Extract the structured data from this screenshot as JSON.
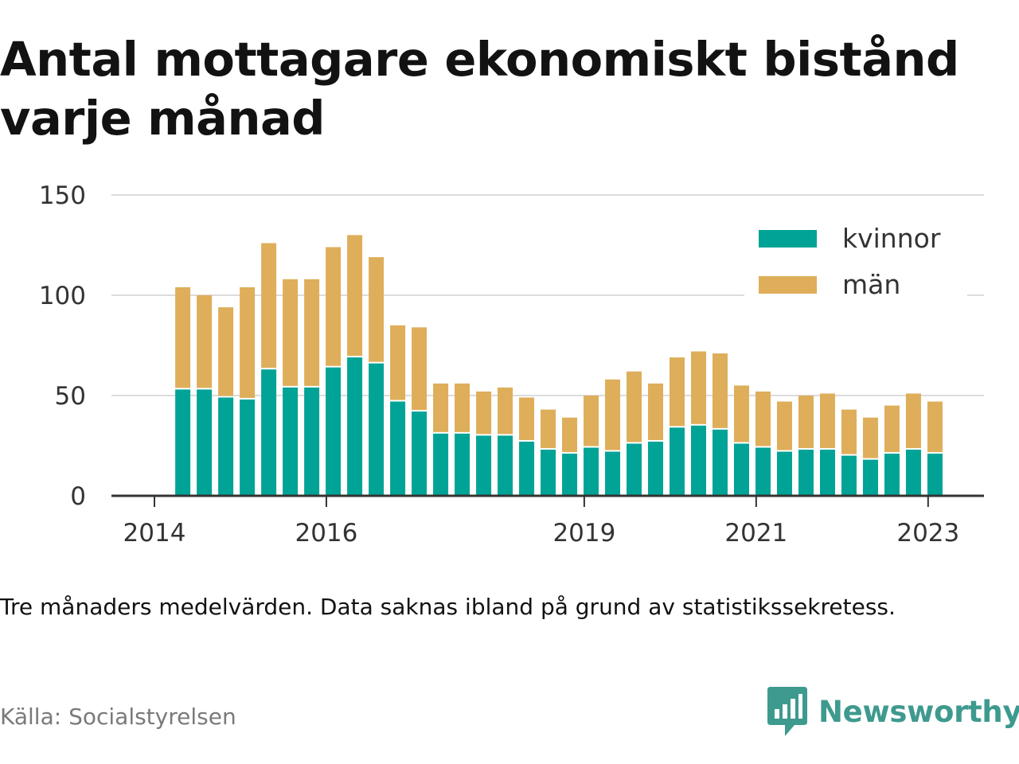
{
  "title": "Antal mottagare ekonomiskt bistånd varje månad",
  "note": "Tre månaders medelvärden. Data saknas ibland på grund av statistikssekretess.",
  "source": "Källa: Socialstyrelsen",
  "brand": {
    "name": "Newsworthy",
    "icon": "newsworthy-logo-icon",
    "color": "#3e9a8e"
  },
  "chart_data": {
    "type": "bar",
    "stacked": true,
    "x_tick_labels": [
      "2014",
      "2016",
      "2019",
      "2021",
      "2023"
    ],
    "x_tick_positions": [
      2014.0,
      2016.0,
      2019.0,
      2021.0,
      2023.0
    ],
    "xlim": [
      2013.5,
      2023.65
    ],
    "y_ticks": [
      0,
      50,
      100,
      150
    ],
    "ylim": [
      0,
      150
    ],
    "grid": true,
    "legend_position": "top-right",
    "x": [
      2014.33,
      2014.58,
      2014.83,
      2015.08,
      2015.33,
      2015.58,
      2015.83,
      2016.08,
      2016.33,
      2016.58,
      2016.83,
      2017.08,
      2017.33,
      2017.58,
      2017.83,
      2018.08,
      2018.33,
      2018.58,
      2018.83,
      2019.08,
      2019.33,
      2019.58,
      2019.83,
      2020.08,
      2020.33,
      2020.58,
      2020.83,
      2021.08,
      2021.33,
      2021.58,
      2021.83,
      2022.08,
      2022.33,
      2022.58,
      2022.83,
      2023.08
    ],
    "series": [
      {
        "name": "kvinnor",
        "color": "#00a396",
        "values": [
          53,
          53,
          49,
          48,
          63,
          54,
          54,
          64,
          69,
          66,
          47,
          42,
          31,
          31,
          30,
          30,
          27,
          23,
          21,
          24,
          22,
          26,
          27,
          34,
          35,
          33,
          26,
          24,
          22,
          23,
          23,
          20,
          18,
          21,
          23,
          21
        ]
      },
      {
        "name": "män",
        "color": "#deae5a",
        "values": [
          51,
          47,
          45,
          56,
          63,
          54,
          54,
          60,
          61,
          53,
          38,
          42,
          25,
          25,
          22,
          24,
          22,
          20,
          18,
          26,
          36,
          36,
          29,
          35,
          37,
          38,
          29,
          28,
          25,
          27,
          28,
          23,
          21,
          24,
          28,
          26
        ]
      }
    ]
  }
}
